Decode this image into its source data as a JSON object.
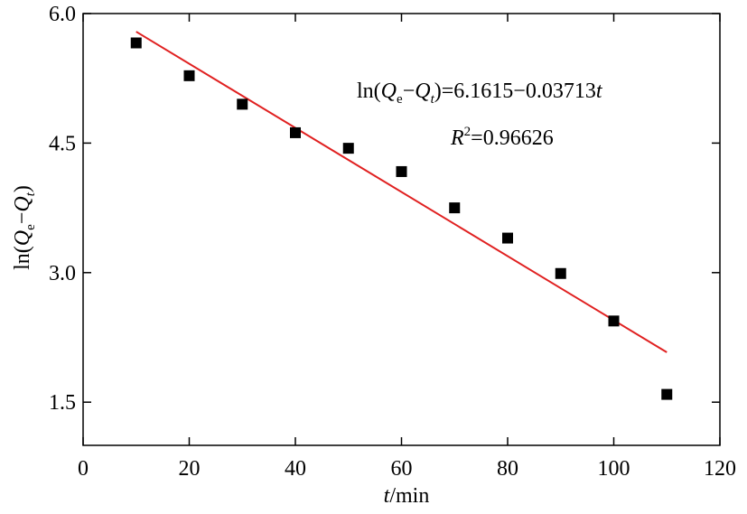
{
  "chart_data": {
    "type": "scatter",
    "xlabel_var": "t",
    "xlabel_unit": "/min",
    "ylabel": {
      "pre": "ln(",
      "q": "Q",
      "sub_e": "e",
      "minus": "−",
      "sub_t": "t",
      "post": ")"
    },
    "xlim": [
      0,
      120
    ],
    "ylim": [
      1.0,
      6.0
    ],
    "xticks": [
      0,
      20,
      40,
      60,
      80,
      100,
      120
    ],
    "xtick_labels": [
      "0",
      "20",
      "40",
      "60",
      "80",
      "100",
      "120"
    ],
    "yticks": [
      1.5,
      3.0,
      4.5,
      6.0
    ],
    "ytick_labels": [
      "1.5",
      "3.0",
      "4.5",
      "6.0"
    ],
    "grid": false,
    "series": [
      {
        "marker": "square",
        "color": "#000000",
        "x": [
          10,
          20,
          30,
          40,
          50,
          60,
          70,
          80,
          90,
          100,
          110
        ],
        "y": [
          5.66,
          5.28,
          4.95,
          4.62,
          4.44,
          4.17,
          3.75,
          3.4,
          2.99,
          2.44,
          1.59
        ]
      }
    ],
    "fit_line": {
      "color": "#e02020",
      "intercept": 6.1615,
      "slope": -0.03713,
      "x_range": [
        10,
        110
      ]
    },
    "annotations": {
      "equation": {
        "pre": "ln(",
        "q1": "Q",
        "sub_e": "e",
        "minus": "−",
        "q2": "Q",
        "sub_t": "t",
        "rhs": ")=6.1615−0.03713",
        "var": "t"
      },
      "r2": {
        "r": "R",
        "sup": "2",
        "value": "=0.96626"
      }
    }
  }
}
